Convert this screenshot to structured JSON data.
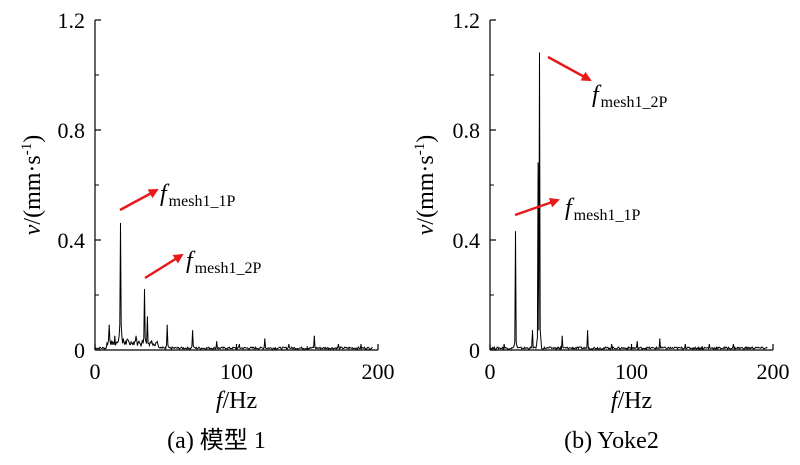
{
  "chart_data": [
    {
      "type": "line",
      "caption": "(a) 模型 1",
      "xlabel": {
        "var": "f",
        "unit": "/Hz"
      },
      "ylabel": {
        "var": "v",
        "unit": "/(mm·s",
        "exp": "-1",
        "close": ")"
      },
      "xlim": [
        0,
        200
      ],
      "ylim": [
        0,
        1.2
      ],
      "xticks": [
        "0",
        "100",
        "200"
      ],
      "yticks": [
        "0",
        "0.4",
        "0.8",
        "1.2"
      ],
      "grid": false,
      "peaks": [
        {
          "x": 10,
          "y": 0.09
        },
        {
          "x": 14,
          "y": 0.05
        },
        {
          "x": 18,
          "y": 0.46
        },
        {
          "x": 20,
          "y": 0.04
        },
        {
          "x": 29,
          "y": 0.05
        },
        {
          "x": 35,
          "y": 0.22
        },
        {
          "x": 37,
          "y": 0.12
        },
        {
          "x": 51,
          "y": 0.09
        },
        {
          "x": 69,
          "y": 0.07
        },
        {
          "x": 86,
          "y": 0.03
        },
        {
          "x": 102,
          "y": 0.02
        },
        {
          "x": 120,
          "y": 0.04
        },
        {
          "x": 137,
          "y": 0.02
        },
        {
          "x": 155,
          "y": 0.05
        },
        {
          "x": 172,
          "y": 0.02
        },
        {
          "x": 188,
          "y": 0.02
        }
      ],
      "annotations": [
        {
          "base": "f",
          "sub": "mesh1_1P",
          "target": {
            "x": 18,
            "y": 0.46
          }
        },
        {
          "base": "f",
          "sub": "mesh1_2P",
          "target": {
            "x": 35,
            "y": 0.22
          }
        }
      ]
    },
    {
      "type": "line",
      "caption": "(b) Yoke2",
      "xlabel": {
        "var": "f",
        "unit": "/Hz"
      },
      "ylabel": {
        "var": "v",
        "unit": "/(mm·s",
        "exp": "-1",
        "close": ")"
      },
      "xlim": [
        0,
        200
      ],
      "ylim": [
        0,
        1.2
      ],
      "xticks": [
        "0",
        "100",
        "200"
      ],
      "yticks": [
        "0",
        "0.4",
        "0.8",
        "1.2"
      ],
      "grid": false,
      "peaks": [
        {
          "x": 10,
          "y": 0.02
        },
        {
          "x": 18,
          "y": 0.43
        },
        {
          "x": 30,
          "y": 0.07
        },
        {
          "x": 34,
          "y": 0.68
        },
        {
          "x": 35,
          "y": 1.08
        },
        {
          "x": 51,
          "y": 0.05
        },
        {
          "x": 69,
          "y": 0.07
        },
        {
          "x": 86,
          "y": 0.02
        },
        {
          "x": 104,
          "y": 0.03
        },
        {
          "x": 120,
          "y": 0.04
        },
        {
          "x": 138,
          "y": 0.02
        },
        {
          "x": 155,
          "y": 0.02
        },
        {
          "x": 172,
          "y": 0.02
        },
        {
          "x": 188,
          "y": 0.01
        }
      ],
      "annotations": [
        {
          "base": "f",
          "sub": "mesh1_2P",
          "target": {
            "x": 35,
            "y": 1.08
          }
        },
        {
          "base": "f",
          "sub": "mesh1_1P",
          "target": {
            "x": 34,
            "y": 0.55
          }
        }
      ]
    }
  ],
  "colors": {
    "line": "#000000",
    "arrow": "#e8191b"
  }
}
